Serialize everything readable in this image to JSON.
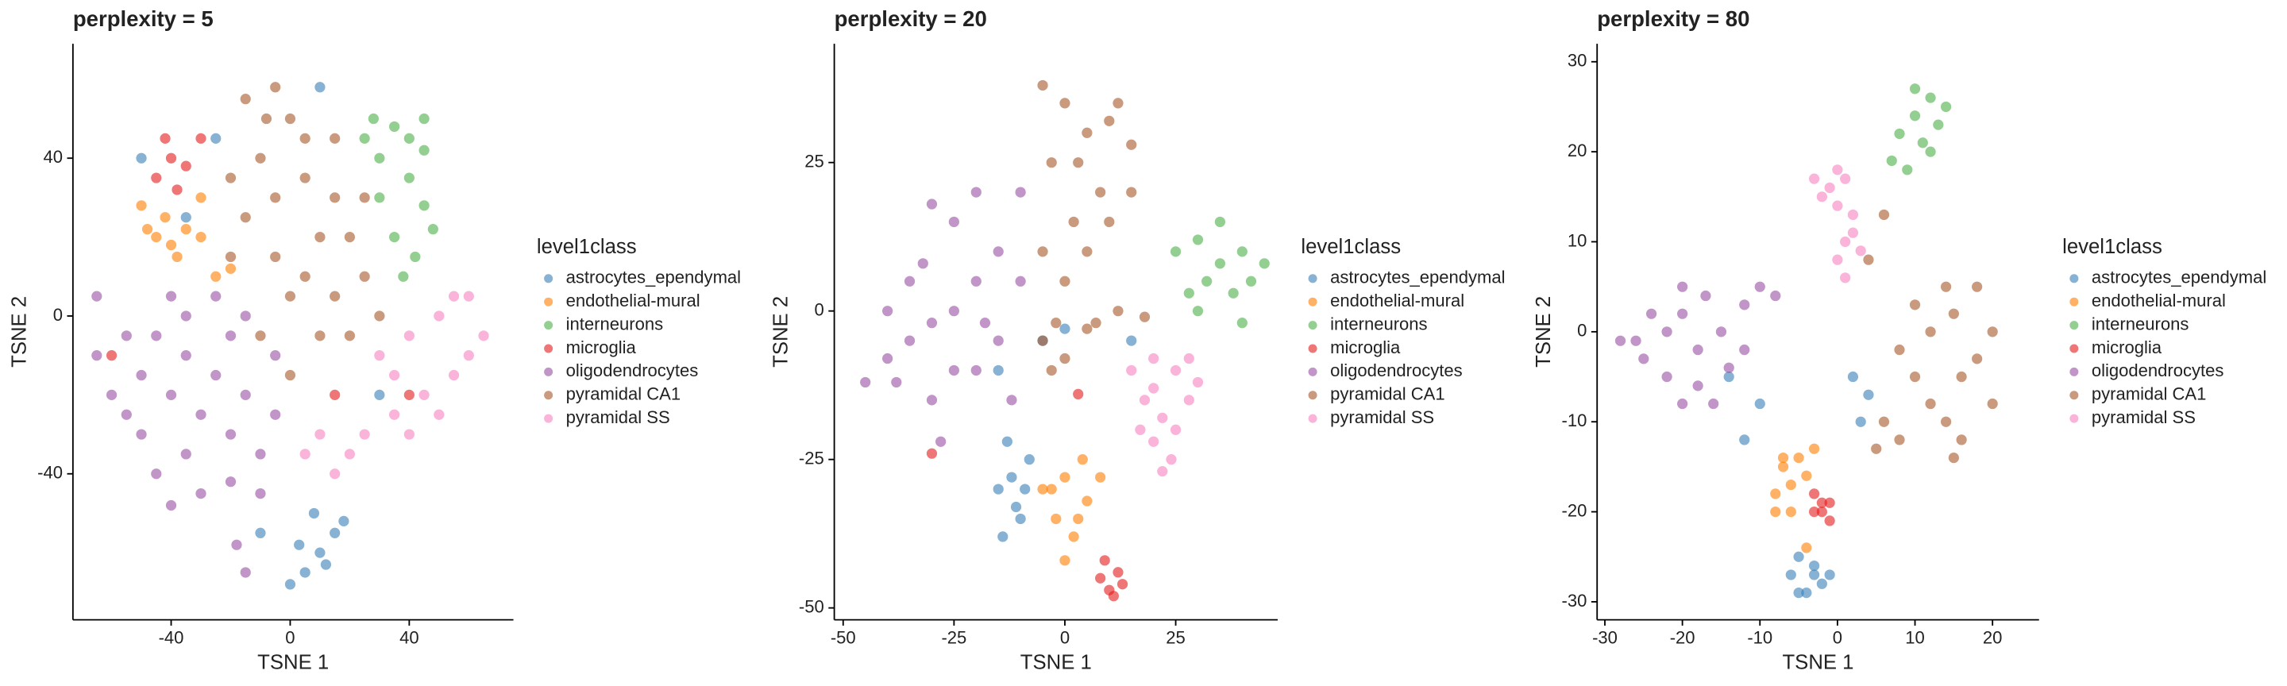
{
  "chart_data": [
    {
      "type": "scatter",
      "title": "perplexity = 5",
      "x_label": "TSNE 1",
      "y_label": "TSNE 2",
      "legend_title": "level1class",
      "xlim": [
        -73,
        75
      ],
      "ylim": [
        -77,
        69
      ],
      "xticks": [
        -40,
        0,
        40
      ],
      "yticks": [
        -40,
        0,
        40
      ],
      "series": [
        {
          "name": "astrocytes_ependymal",
          "color": "#377EB8",
          "x": [
            5,
            10,
            15,
            0,
            8,
            18,
            -10,
            -35,
            -50,
            10,
            -25,
            30,
            3,
            12
          ],
          "y": [
            -65,
            -60,
            -55,
            -68,
            -50,
            -52,
            -55,
            25,
            40,
            58,
            45,
            -20,
            -58,
            -63
          ]
        },
        {
          "name": "endothelial-mural",
          "color": "#FF7F00",
          "x": [
            -50,
            -45,
            -40,
            -35,
            -38,
            -30,
            -42,
            -48,
            -25,
            -30,
            -20
          ],
          "y": [
            28,
            20,
            18,
            22,
            15,
            20,
            25,
            22,
            10,
            30,
            12
          ]
        },
        {
          "name": "interneurons",
          "color": "#4DAF4A",
          "x": [
            25,
            30,
            35,
            40,
            45,
            30,
            40,
            45,
            35,
            42,
            48,
            38,
            28,
            45
          ],
          "y": [
            45,
            40,
            48,
            45,
            42,
            30,
            35,
            28,
            20,
            15,
            22,
            10,
            50,
            50
          ]
        },
        {
          "name": "microglia",
          "color": "#E41A1C",
          "x": [
            -45,
            -40,
            -35,
            -42,
            -30,
            -38,
            -60,
            15,
            40
          ],
          "y": [
            35,
            40,
            38,
            45,
            45,
            32,
            -10,
            -20,
            -20
          ]
        },
        {
          "name": "oligodendrocytes",
          "color": "#984EA3",
          "x": [
            -65,
            -55,
            -50,
            -45,
            -40,
            -35,
            -30,
            -25,
            -20,
            -15,
            -10,
            -5,
            -50,
            -45,
            -35,
            -30,
            -20,
            -10,
            -55,
            -60,
            -25,
            -15,
            -20,
            -35,
            -40,
            -65,
            -18,
            -15,
            -5,
            -40
          ],
          "y": [
            5,
            -5,
            -15,
            -5,
            -20,
            -10,
            -25,
            -15,
            -30,
            -20,
            -35,
            -25,
            -30,
            -40,
            -35,
            -45,
            -42,
            -45,
            -25,
            -20,
            5,
            0,
            -5,
            0,
            5,
            -10,
            -58,
            -65,
            -10,
            -48
          ]
        },
        {
          "name": "pyramidal CA1",
          "color": "#A65628",
          "x": [
            -15,
            -5,
            0,
            5,
            -10,
            -20,
            -15,
            -5,
            5,
            15,
            20,
            25,
            15,
            5,
            -5,
            0,
            10,
            20,
            30,
            0,
            -10,
            -20,
            10,
            15,
            -8,
            25
          ],
          "y": [
            55,
            58,
            50,
            45,
            40,
            35,
            25,
            30,
            35,
            30,
            20,
            10,
            5,
            10,
            15,
            5,
            -5,
            -5,
            0,
            -15,
            -5,
            15,
            20,
            45,
            50,
            30
          ]
        },
        {
          "name": "pyramidal SS",
          "color": "#F781BF",
          "x": [
            30,
            40,
            50,
            60,
            65,
            55,
            45,
            35,
            25,
            15,
            20,
            40,
            55,
            60,
            5,
            50,
            35,
            10
          ],
          "y": [
            -10,
            -5,
            0,
            5,
            -5,
            -15,
            -20,
            -25,
            -30,
            -40,
            -35,
            -30,
            5,
            -10,
            -35,
            -25,
            -15,
            -30
          ]
        }
      ]
    },
    {
      "type": "scatter",
      "title": "perplexity = 20",
      "x_label": "TSNE 1",
      "y_label": "TSNE 2",
      "legend_title": "level1class",
      "xlim": [
        -52,
        48
      ],
      "ylim": [
        -52,
        45
      ],
      "xticks": [
        -50,
        -25,
        0,
        25
      ],
      "yticks": [
        -50,
        -25,
        0,
        25
      ],
      "series": [
        {
          "name": "astrocytes_ependymal",
          "color": "#377EB8",
          "x": [
            -15,
            -12,
            -10,
            -8,
            -14,
            -11,
            -13,
            -9,
            -5,
            0,
            15,
            -15
          ],
          "y": [
            -30,
            -28,
            -35,
            -25,
            -38,
            -33,
            -22,
            -30,
            -5,
            -3,
            -5,
            -10
          ]
        },
        {
          "name": "endothelial-mural",
          "color": "#FF7F00",
          "x": [
            -5,
            0,
            5,
            2,
            -2,
            8,
            0,
            4,
            -3,
            3
          ],
          "y": [
            -30,
            -28,
            -32,
            -38,
            -35,
            -28,
            -42,
            -25,
            -30,
            -35
          ]
        },
        {
          "name": "interneurons",
          "color": "#4DAF4A",
          "x": [
            25,
            30,
            35,
            40,
            42,
            38,
            32,
            28,
            35,
            45,
            40,
            30
          ],
          "y": [
            10,
            12,
            15,
            10,
            5,
            3,
            5,
            3,
            8,
            8,
            -2,
            0
          ]
        },
        {
          "name": "microglia",
          "color": "#E41A1C",
          "x": [
            8,
            10,
            12,
            9,
            11,
            13,
            -30,
            3
          ],
          "y": [
            -45,
            -47,
            -44,
            -42,
            -48,
            -46,
            -24,
            -14
          ]
        },
        {
          "name": "oligodendrocytes",
          "color": "#984EA3",
          "x": [
            -45,
            -40,
            -35,
            -30,
            -25,
            -20,
            -15,
            -25,
            -30,
            -20,
            -10,
            -15,
            -25,
            -35,
            -38,
            -30,
            -20,
            -12,
            -28,
            -32,
            -18,
            -40,
            -10
          ],
          "y": [
            -12,
            -8,
            -5,
            -2,
            0,
            5,
            10,
            15,
            18,
            20,
            5,
            -5,
            -10,
            5,
            -12,
            -15,
            -10,
            -15,
            -22,
            8,
            -2,
            0,
            20
          ]
        },
        {
          "name": "pyramidal CA1",
          "color": "#A65628",
          "x": [
            -5,
            0,
            5,
            10,
            15,
            8,
            2,
            -5,
            0,
            5,
            10,
            15,
            -3,
            3,
            -5,
            0,
            5,
            -3,
            12,
            18,
            7,
            12,
            -2
          ],
          "y": [
            38,
            35,
            30,
            32,
            28,
            20,
            15,
            10,
            5,
            10,
            15,
            20,
            25,
            25,
            -5,
            -8,
            -3,
            -10,
            0,
            -1,
            -2,
            35,
            -2
          ]
        },
        {
          "name": "pyramidal SS",
          "color": "#F781BF",
          "x": [
            15,
            20,
            25,
            28,
            22,
            18,
            20,
            25,
            22,
            28,
            30,
            17,
            24,
            20
          ],
          "y": [
            -10,
            -8,
            -10,
            -15,
            -18,
            -15,
            -22,
            -20,
            -27,
            -8,
            -12,
            -20,
            -25,
            -13
          ]
        }
      ]
    },
    {
      "type": "scatter",
      "title": "perplexity = 80",
      "x_label": "TSNE 1",
      "y_label": "TSNE 2",
      "legend_title": "level1class",
      "xlim": [
        -31,
        26
      ],
      "ylim": [
        -32,
        32
      ],
      "xticks": [
        -30,
        -20,
        -10,
        0,
        10,
        20
      ],
      "yticks": [
        -30,
        -20,
        -10,
        0,
        10,
        20,
        30
      ],
      "series": [
        {
          "name": "astrocytes_ependymal",
          "color": "#377EB8",
          "x": [
            -5,
            -3,
            -4,
            -2,
            -6,
            -3,
            -1,
            -5,
            2,
            3,
            4,
            -10,
            -14,
            -12
          ],
          "y": [
            -25,
            -27,
            -29,
            -28,
            -27,
            -26,
            -27,
            -29,
            -5,
            -10,
            -7,
            -8,
            -5,
            -12
          ]
        },
        {
          "name": "endothelial-mural",
          "color": "#FF7F00",
          "x": [
            -8,
            -6,
            -7,
            -5,
            -4,
            -8,
            -6,
            -3,
            -4,
            -7
          ],
          "y": [
            -18,
            -17,
            -15,
            -14,
            -16,
            -20,
            -20,
            -13,
            -24,
            -14
          ]
        },
        {
          "name": "interneurons",
          "color": "#4DAF4A",
          "x": [
            8,
            10,
            12,
            14,
            11,
            7,
            9,
            13,
            10,
            12
          ],
          "y": [
            22,
            24,
            26,
            25,
            21,
            19,
            18,
            23,
            27,
            20
          ]
        },
        {
          "name": "microglia",
          "color": "#E41A1C",
          "x": [
            -3,
            -2,
            -1,
            -2,
            -3,
            -1
          ],
          "y": [
            -20,
            -19,
            -21,
            -20,
            -18,
            -19
          ]
        },
        {
          "name": "oligodendrocytes",
          "color": "#984EA3",
          "x": [
            -28,
            -25,
            -22,
            -20,
            -18,
            -15,
            -12,
            -10,
            -20,
            -17,
            -22,
            -18,
            -14,
            -24,
            -26,
            -16,
            -12,
            -8,
            -20
          ],
          "y": [
            -1,
            -3,
            0,
            2,
            -2,
            0,
            3,
            5,
            5,
            4,
            -5,
            -6,
            -4,
            2,
            -1,
            -8,
            -2,
            4,
            -8
          ]
        },
        {
          "name": "pyramidal CA1",
          "color": "#A65628",
          "x": [
            6,
            8,
            10,
            12,
            15,
            18,
            20,
            16,
            14,
            12,
            18,
            14,
            10,
            20,
            16,
            8,
            5,
            4,
            6,
            15
          ],
          "y": [
            -10,
            -12,
            -5,
            0,
            2,
            5,
            0,
            -5,
            -10,
            -8,
            -3,
            5,
            3,
            -8,
            -12,
            -2,
            -13,
            8,
            13,
            -14
          ]
        },
        {
          "name": "pyramidal SS",
          "color": "#F781BF",
          "x": [
            -3,
            -1,
            0,
            1,
            2,
            3,
            1,
            0,
            -2,
            2,
            0,
            1
          ],
          "y": [
            17,
            16,
            14,
            17,
            11,
            9,
            10,
            8,
            15,
            13,
            18,
            6
          ]
        }
      ]
    }
  ]
}
